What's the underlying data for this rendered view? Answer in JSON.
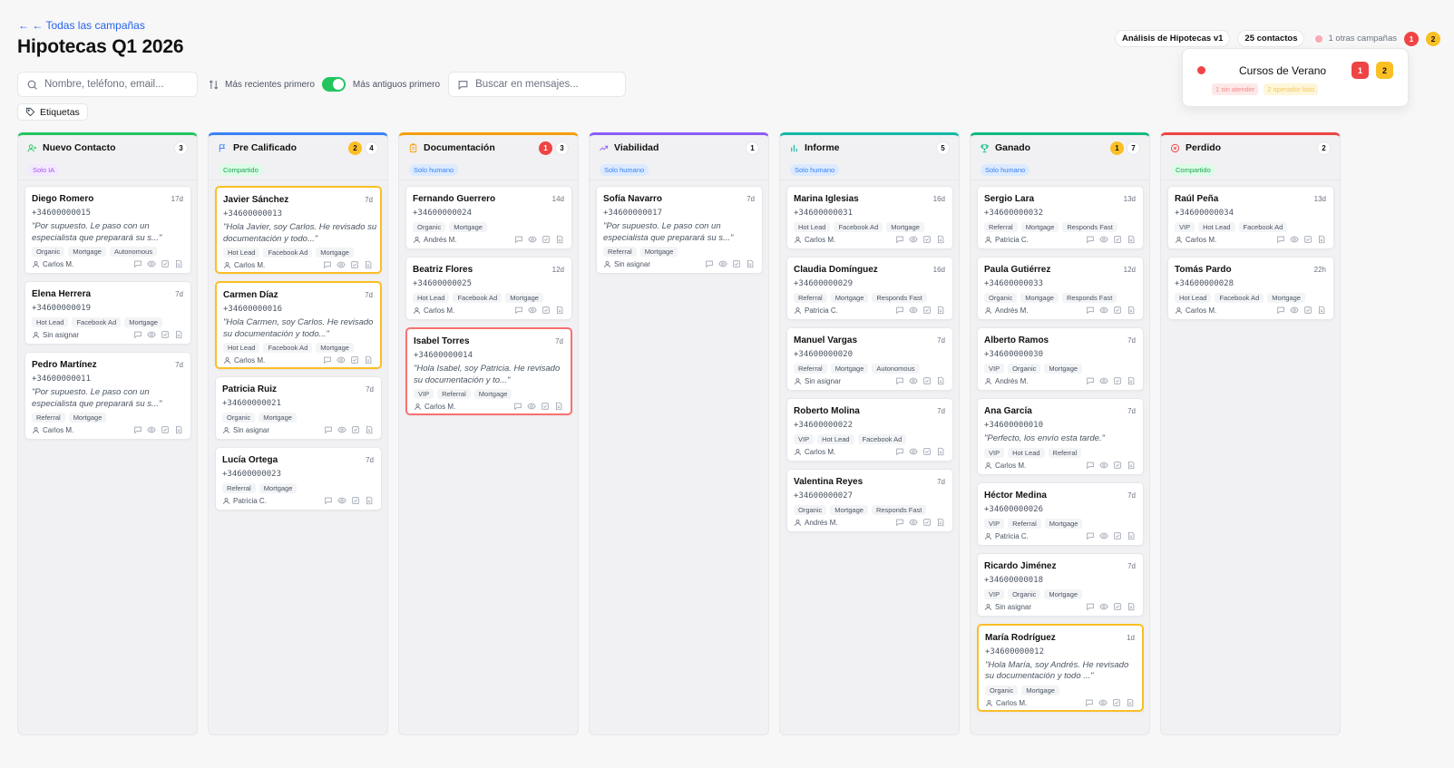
{
  "nav": {
    "back_label": "← ← Todas las campañas"
  },
  "page": {
    "title": "Hipotecas Q1 2026"
  },
  "search": {
    "placeholder": "Nombre, teléfono, email...",
    "value": ""
  },
  "sort": {
    "recent_label": "Más recientes primero",
    "oldest_label": "Más antiguos primero",
    "toggle_on": true
  },
  "msg_search": {
    "placeholder": "Buscar en mensajes..."
  },
  "tags_button": {
    "label": "Etiquetas"
  },
  "header": {
    "analysis_pill": "Análisis de Hipotecas v1",
    "contacts_pill": "25 contactos",
    "other_campaigns": "1 otras campañas",
    "badge_red": "1",
    "badge_yellow": "2"
  },
  "popover": {
    "campaign_name": "Cursos de Verano",
    "badge_red": "1",
    "badge_yellow": "2",
    "tag_unattended": "1 sin atender",
    "tag_operator": "2 operador listo"
  },
  "colors": {
    "accent": "#2563eb",
    "toggle": "#22c55e",
    "alert": "#ef4444",
    "warn": "#fbbf24"
  },
  "columns": [
    {
      "id": "nuevo",
      "title": "Nuevo Contacto",
      "icon": "user-plus-icon",
      "color": "#22c55e",
      "mode": "Solo IA",
      "mode_type": "ia",
      "count": "3",
      "alert": "",
      "warn": "",
      "cards": [
        {
          "name": "Diego Romero",
          "time": "17d",
          "phone": "+34600000015",
          "msg": "\"Por supuesto. Le paso con un especialista que preparará su s...\"",
          "tags": [
            "Organic",
            "Mortgage",
            "Autonomous"
          ],
          "owner": "Carlos M.",
          "highlight": ""
        },
        {
          "name": "Elena Herrera",
          "time": "7d",
          "phone": "+34600000019",
          "msg": "",
          "tags": [
            "Hot Lead",
            "Facebook Ad",
            "Mortgage"
          ],
          "owner": "Sin asignar",
          "highlight": ""
        },
        {
          "name": "Pedro Martínez",
          "time": "7d",
          "phone": "+34600000011",
          "msg": "\"Por supuesto. Le paso con un especialista que preparará su s...\"",
          "tags": [
            "Referral",
            "Mortgage"
          ],
          "owner": "Carlos M.",
          "highlight": ""
        }
      ]
    },
    {
      "id": "precal",
      "title": "Pre Calificado",
      "icon": "flag-icon",
      "color": "#3b82f6",
      "mode": "Compartido",
      "mode_type": "comp",
      "count": "4",
      "alert": "",
      "warn": "2",
      "cards": [
        {
          "name": "Javier Sánchez",
          "time": "7d",
          "phone": "+34600000013",
          "msg": "\"Hola Javier, soy Carlos. He revisado su documentación y todo...\"",
          "tags": [
            "Hot Lead",
            "Facebook Ad",
            "Mortgage"
          ],
          "owner": "Carlos M.",
          "highlight": "yellow"
        },
        {
          "name": "Carmen Díaz",
          "time": "7d",
          "phone": "+34600000016",
          "msg": "\"Hola Carmen, soy Carlos. He revisado su documentación y todo...\"",
          "tags": [
            "Hot Lead",
            "Facebook Ad",
            "Mortgage"
          ],
          "owner": "Carlos M.",
          "highlight": "yellow"
        },
        {
          "name": "Patricia Ruiz",
          "time": "7d",
          "phone": "+34600000021",
          "msg": "",
          "tags": [
            "Organic",
            "Mortgage"
          ],
          "owner": "Sin asignar",
          "highlight": ""
        },
        {
          "name": "Lucía Ortega",
          "time": "7d",
          "phone": "+34600000023",
          "msg": "",
          "tags": [
            "Referral",
            "Mortgage"
          ],
          "owner": "Patricia C.",
          "highlight": ""
        }
      ]
    },
    {
      "id": "doc",
      "title": "Documentación",
      "icon": "clipboard-icon",
      "color": "#f59e0b",
      "mode": "Solo humano",
      "mode_type": "hum",
      "count": "3",
      "alert": "1",
      "warn": "",
      "cards": [
        {
          "name": "Fernando Guerrero",
          "time": "14d",
          "phone": "+34600000024",
          "msg": "",
          "tags": [
            "Organic",
            "Mortgage"
          ],
          "owner": "Andrés M.",
          "highlight": ""
        },
        {
          "name": "Beatriz Flores",
          "time": "12d",
          "phone": "+34600000025",
          "msg": "",
          "tags": [
            "Hot Lead",
            "Facebook Ad",
            "Mortgage"
          ],
          "owner": "Carlos M.",
          "highlight": ""
        },
        {
          "name": "Isabel Torres",
          "time": "7d",
          "phone": "+34600000014",
          "msg": "\"Hola Isabel, soy Patricia. He revisado su documentación y to...\"",
          "tags": [
            "VIP",
            "Referral",
            "Mortgage"
          ],
          "owner": "Carlos M.",
          "highlight": "red"
        }
      ]
    },
    {
      "id": "viab",
      "title": "Viabilidad",
      "icon": "trend-up-icon",
      "color": "#8b5cf6",
      "mode": "Solo humano",
      "mode_type": "hum",
      "count": "1",
      "alert": "",
      "warn": "",
      "cards": [
        {
          "name": "Sofía Navarro",
          "time": "7d",
          "phone": "+34600000017",
          "msg": "\"Por supuesto. Le paso con un especialista que preparará su s...\"",
          "tags": [
            "Referral",
            "Mortgage"
          ],
          "owner": "Sin asignar",
          "highlight": ""
        }
      ]
    },
    {
      "id": "informe",
      "title": "Informe",
      "icon": "bar-chart-icon",
      "color": "#14b8a6",
      "mode": "Solo humano",
      "mode_type": "hum",
      "count": "5",
      "alert": "",
      "warn": "",
      "cards": [
        {
          "name": "Marina Iglesias",
          "time": "16d",
          "phone": "+34600000031",
          "msg": "",
          "tags": [
            "Hot Lead",
            "Facebook Ad",
            "Mortgage"
          ],
          "owner": "Carlos M.",
          "highlight": ""
        },
        {
          "name": "Claudia Domínguez",
          "time": "16d",
          "phone": "+34600000029",
          "msg": "",
          "tags": [
            "Referral",
            "Mortgage",
            "Responds Fast"
          ],
          "owner": "Patricia C.",
          "highlight": ""
        },
        {
          "name": "Manuel Vargas",
          "time": "7d",
          "phone": "+34600000020",
          "msg": "",
          "tags": [
            "Referral",
            "Mortgage",
            "Autonomous"
          ],
          "owner": "Sin asignar",
          "highlight": ""
        },
        {
          "name": "Roberto Molina",
          "time": "7d",
          "phone": "+34600000022",
          "msg": "",
          "tags": [
            "VIP",
            "Hot Lead",
            "Facebook Ad"
          ],
          "owner": "Carlos M.",
          "highlight": ""
        },
        {
          "name": "Valentina Reyes",
          "time": "7d",
          "phone": "+34600000027",
          "msg": "",
          "tags": [
            "Organic",
            "Mortgage",
            "Responds Fast"
          ],
          "owner": "Andrés M.",
          "highlight": ""
        }
      ]
    },
    {
      "id": "ganado",
      "title": "Ganado",
      "icon": "trophy-icon",
      "color": "#10b981",
      "mode": "Solo humano",
      "mode_type": "hum",
      "count": "7",
      "alert": "",
      "warn": "1",
      "cards": [
        {
          "name": "Sergio Lara",
          "time": "13d",
          "phone": "+34600000032",
          "msg": "",
          "tags": [
            "Referral",
            "Mortgage",
            "Responds Fast"
          ],
          "owner": "Patricia C.",
          "highlight": ""
        },
        {
          "name": "Paula Gutiérrez",
          "time": "12d",
          "phone": "+34600000033",
          "msg": "",
          "tags": [
            "Organic",
            "Mortgage",
            "Responds Fast"
          ],
          "owner": "Andrés M.",
          "highlight": ""
        },
        {
          "name": "Alberto Ramos",
          "time": "7d",
          "phone": "+34600000030",
          "msg": "",
          "tags": [
            "VIP",
            "Organic",
            "Mortgage"
          ],
          "owner": "Andrés M.",
          "highlight": ""
        },
        {
          "name": "Ana García",
          "time": "7d",
          "phone": "+34600000010",
          "msg": "\"Perfecto, los envío esta tarde.\"",
          "tags": [
            "VIP",
            "Hot Lead",
            "Referral"
          ],
          "owner": "Carlos M.",
          "highlight": ""
        },
        {
          "name": "Héctor Medina",
          "time": "7d",
          "phone": "+34600000026",
          "msg": "",
          "tags": [
            "VIP",
            "Referral",
            "Mortgage"
          ],
          "owner": "Patricia C.",
          "highlight": ""
        },
        {
          "name": "Ricardo Jiménez",
          "time": "7d",
          "phone": "+34600000018",
          "msg": "",
          "tags": [
            "VIP",
            "Organic",
            "Mortgage"
          ],
          "owner": "Sin asignar",
          "highlight": ""
        },
        {
          "name": "María Rodríguez",
          "time": "1d",
          "phone": "+34600000012",
          "msg": "\"Hola María, soy Andrés. He revisado su documentación y todo ...\"",
          "tags": [
            "Organic",
            "Mortgage"
          ],
          "owner": "Carlos M.",
          "highlight": "yellow"
        }
      ]
    },
    {
      "id": "perdido",
      "title": "Perdido",
      "icon": "x-circle-icon",
      "color": "#ef4444",
      "mode": "Compartido",
      "mode_type": "comp",
      "count": "2",
      "alert": "",
      "warn": "",
      "cards": [
        {
          "name": "Raúl Peña",
          "time": "13d",
          "phone": "+34600000034",
          "msg": "",
          "tags": [
            "VIP",
            "Hot Lead",
            "Facebook Ad"
          ],
          "owner": "Carlos M.",
          "highlight": ""
        },
        {
          "name": "Tomás Pardo",
          "time": "22h",
          "phone": "+34600000028",
          "msg": "",
          "tags": [
            "Hot Lead",
            "Facebook Ad",
            "Mortgage"
          ],
          "owner": "Carlos M.",
          "highlight": ""
        }
      ]
    }
  ]
}
